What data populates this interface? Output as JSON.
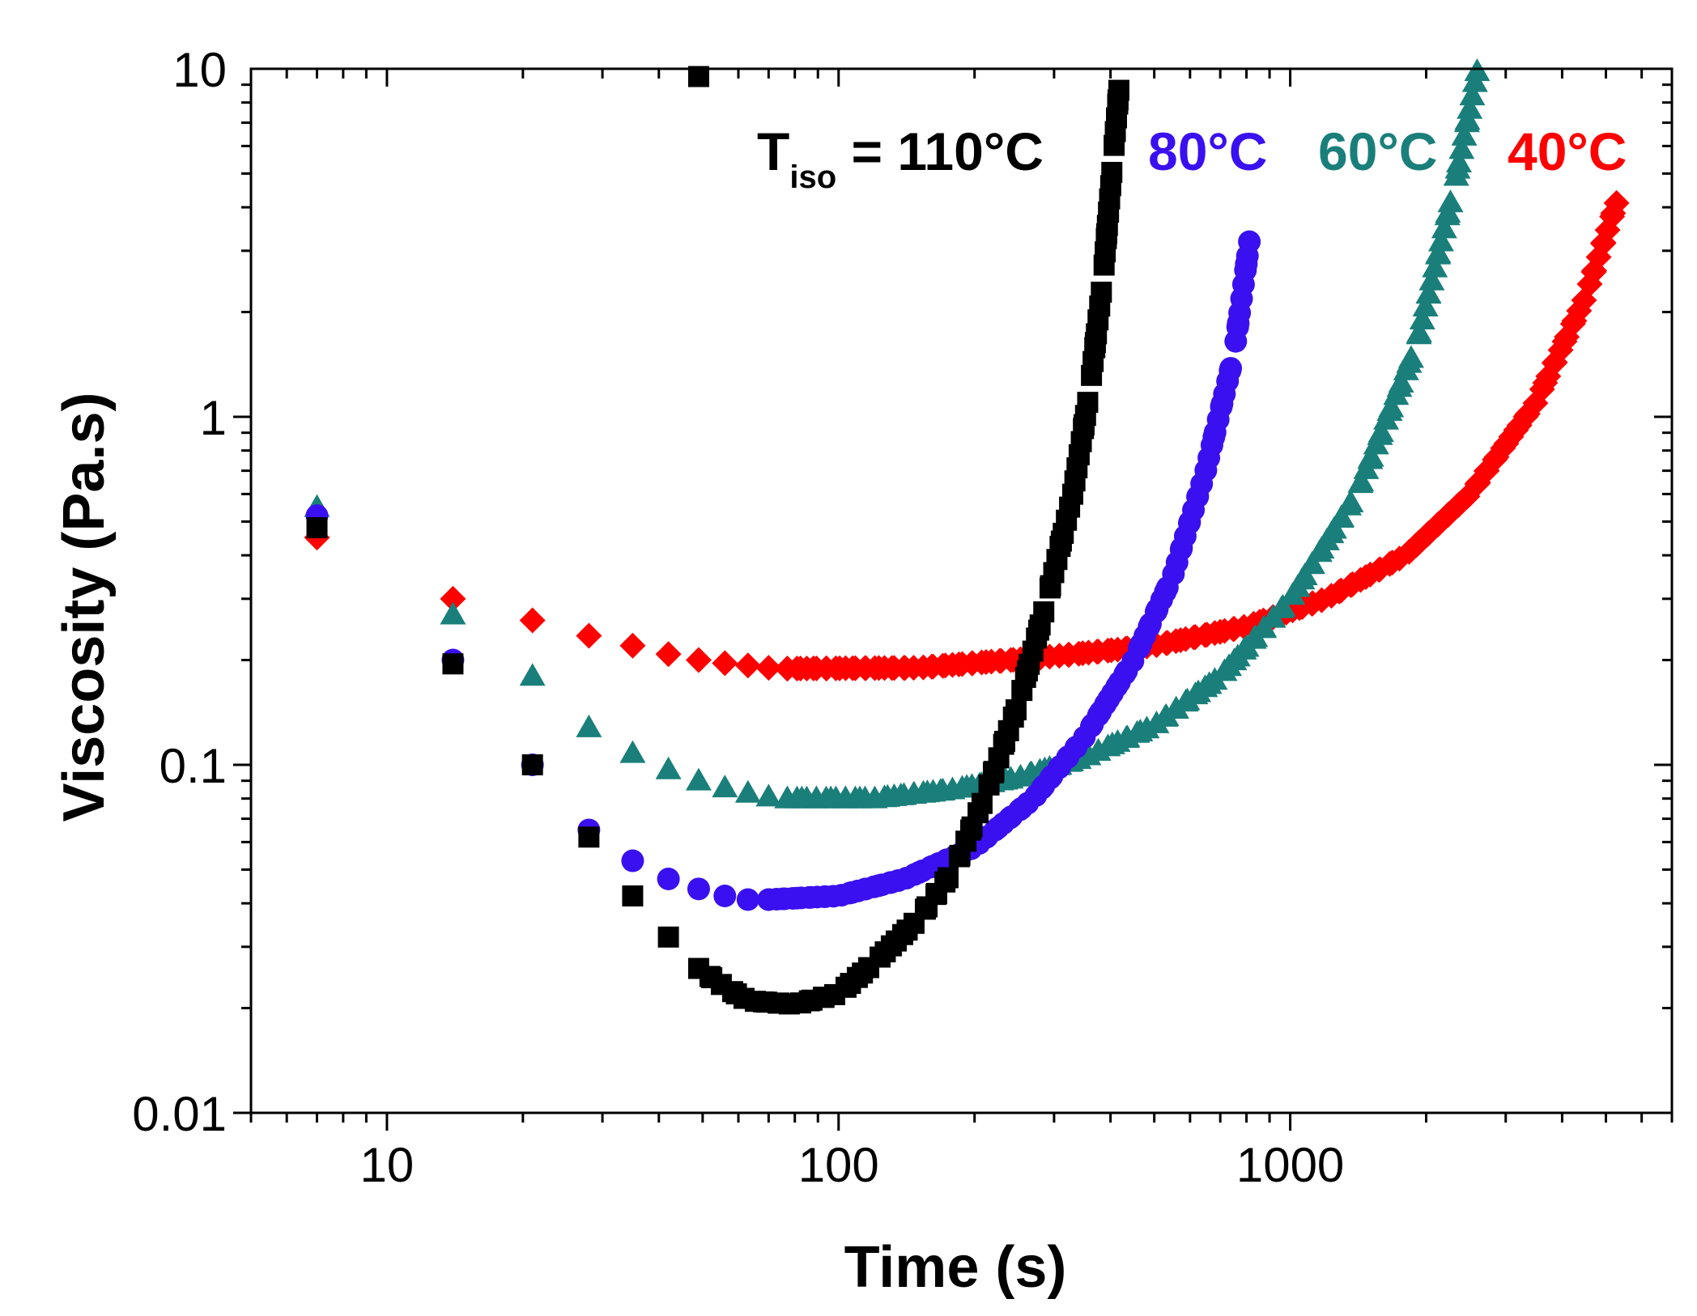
{
  "chart_data": {
    "type": "scatter",
    "xscale": "log",
    "yscale": "log",
    "xlabel": "Time (s)",
    "ylabel": "Viscosity (Pa.s)",
    "xlim": [
      5,
      7000
    ],
    "ylim": [
      0.01,
      10
    ],
    "xticks": [
      {
        "value": 10,
        "label": "10"
      },
      {
        "value": 100,
        "label": "100"
      },
      {
        "value": 1000,
        "label": "1000"
      }
    ],
    "yticks": [
      {
        "value": 0.01,
        "label": "0.01"
      },
      {
        "value": 0.1,
        "label": "0.1"
      },
      {
        "value": 1,
        "label": "1"
      },
      {
        "value": 10,
        "label": "10"
      }
    ],
    "annotation": {
      "main": "T",
      "sub": "iso",
      "rest": " = 110°C"
    },
    "series": [
      {
        "name": "40°C",
        "label": "40°C",
        "marker": "diamond",
        "color": "#ff0000",
        "early": [
          [
            7,
            0.45
          ],
          [
            14,
            0.3
          ],
          [
            21,
            0.26
          ],
          [
            28,
            0.235
          ],
          [
            35,
            0.22
          ],
          [
            42,
            0.208
          ],
          [
            49,
            0.2
          ],
          [
            56,
            0.196
          ],
          [
            63,
            0.193
          ],
          [
            70,
            0.19
          ],
          [
            77,
            0.189
          ]
        ],
        "curve": [
          [
            77,
            0.189
          ],
          [
            150,
            0.19
          ],
          [
            300,
            0.205
          ],
          [
            500,
            0.22
          ],
          [
            800,
            0.25
          ],
          [
            1200,
            0.3
          ],
          [
            1800,
            0.4
          ],
          [
            2500,
            0.6
          ],
          [
            3500,
            1.1
          ],
          [
            4500,
            2.2
          ],
          [
            5400,
            4.5
          ]
        ],
        "step": 12
      },
      {
        "name": "60°C",
        "label": "60°C",
        "marker": "triangle",
        "color": "#1a7f7a",
        "early": [
          [
            7,
            0.55
          ],
          [
            14,
            0.27
          ],
          [
            21,
            0.18
          ],
          [
            28,
            0.128
          ],
          [
            35,
            0.108
          ],
          [
            42,
            0.097
          ],
          [
            49,
            0.09
          ],
          [
            56,
            0.086
          ],
          [
            63,
            0.083
          ],
          [
            70,
            0.081
          ],
          [
            77,
            0.08
          ]
        ],
        "curve": [
          [
            77,
            0.08
          ],
          [
            120,
            0.08
          ],
          [
            180,
            0.085
          ],
          [
            250,
            0.092
          ],
          [
            350,
            0.105
          ],
          [
            500,
            0.13
          ],
          [
            700,
            0.18
          ],
          [
            1000,
            0.3
          ],
          [
            1400,
            0.6
          ],
          [
            1900,
            1.6
          ],
          [
            2300,
            4.5
          ],
          [
            2600,
            10
          ]
        ],
        "step": 12
      },
      {
        "name": "80°C",
        "label": "80°C",
        "marker": "circle",
        "color": "#3a10f0",
        "early": [
          [
            7,
            0.52
          ],
          [
            14,
            0.2
          ],
          [
            21,
            0.1
          ],
          [
            28,
            0.065
          ],
          [
            35,
            0.053
          ],
          [
            42,
            0.047
          ],
          [
            49,
            0.044
          ],
          [
            56,
            0.042
          ],
          [
            63,
            0.041
          ],
          [
            70,
            0.041
          ]
        ],
        "curve": [
          [
            70,
            0.041
          ],
          [
            100,
            0.042
          ],
          [
            140,
            0.047
          ],
          [
            200,
            0.058
          ],
          [
            270,
            0.08
          ],
          [
            350,
            0.12
          ],
          [
            450,
            0.2
          ],
          [
            550,
            0.35
          ],
          [
            650,
            0.7
          ],
          [
            750,
            1.5
          ],
          [
            820,
            3.5
          ]
        ],
        "step": 10
      },
      {
        "name": "110°C",
        "label": "",
        "marker": "square",
        "color": "#000000",
        "early": [
          [
            7,
            0.48
          ],
          [
            14,
            0.195
          ],
          [
            21,
            0.1
          ],
          [
            28,
            0.062
          ],
          [
            35,
            0.042
          ],
          [
            42,
            0.032
          ],
          [
            49,
            0.026
          ]
        ],
        "curve": [
          [
            49,
            0.026
          ],
          [
            56,
            0.023
          ],
          [
            63,
            0.021
          ],
          [
            80,
            0.0205
          ],
          [
            100,
            0.022
          ],
          [
            120,
            0.027
          ],
          [
            150,
            0.036
          ],
          [
            180,
            0.05
          ],
          [
            210,
            0.08
          ],
          [
            250,
            0.15
          ],
          [
            290,
            0.3
          ],
          [
            330,
            0.6
          ],
          [
            360,
            1.2
          ],
          [
            385,
            2.5
          ],
          [
            405,
            5.5
          ],
          [
            420,
            9.5
          ]
        ],
        "step": 14
      }
    ]
  }
}
